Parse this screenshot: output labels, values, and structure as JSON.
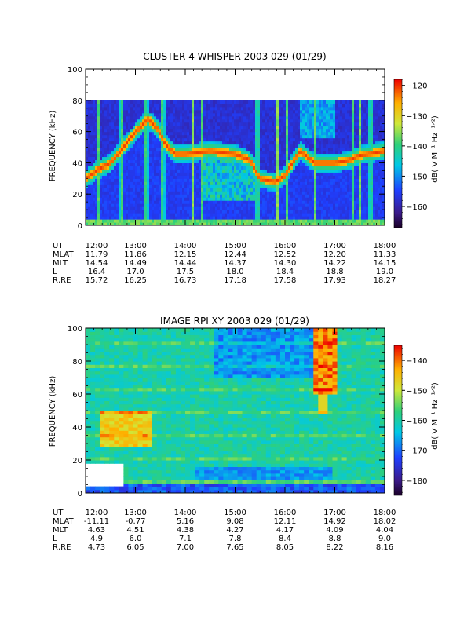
{
  "chart_data": [
    {
      "type": "heatmap",
      "title": "CLUSTER 4 WHISPER 2003 029 (01/29)",
      "xlabel": "",
      "ylabel": "FREQUENCY (kHz)",
      "ylim": [
        0,
        100
      ],
      "y_ticks": [
        "0",
        "20",
        "40",
        "60",
        "80",
        "100"
      ],
      "x_ticks": [
        "12:00",
        "13:00",
        "14:00",
        "15:00",
        "16:00",
        "17:00",
        "18:00"
      ],
      "x_range_hours": [
        12,
        18
      ],
      "data_ceiling_khz": 80,
      "colorbar": {
        "label": "dB( V M⁻¹ Hz⁻¹ᐟ²)",
        "range": [
          -167,
          -118
        ],
        "ticks": [
          "-120",
          "-130",
          "-140",
          "-150",
          "-160"
        ]
      },
      "features": {
        "plasma_line": [
          {
            "t": 12.0,
            "f": 30
          },
          {
            "t": 12.25,
            "f": 36
          },
          {
            "t": 12.5,
            "f": 40
          },
          {
            "t": 12.75,
            "f": 50
          },
          {
            "t": 13.0,
            "f": 60
          },
          {
            "t": 13.25,
            "f": 68
          },
          {
            "t": 13.45,
            "f": 62
          },
          {
            "t": 13.6,
            "f": 52
          },
          {
            "t": 13.8,
            "f": 46
          },
          {
            "t": 14.0,
            "f": 46
          },
          {
            "t": 14.5,
            "f": 48
          },
          {
            "t": 15.0,
            "f": 46
          },
          {
            "t": 15.3,
            "f": 42
          },
          {
            "t": 15.5,
            "f": 30
          },
          {
            "t": 15.8,
            "f": 28
          },
          {
            "t": 16.0,
            "f": 32
          },
          {
            "t": 16.3,
            "f": 48
          },
          {
            "t": 16.6,
            "f": 40
          },
          {
            "t": 17.0,
            "f": 40
          },
          {
            "t": 17.3,
            "f": 42
          },
          {
            "t": 17.5,
            "f": 45
          },
          {
            "t": 18.0,
            "f": 48
          }
        ],
        "broadband_bursts_hours": [
          12.25,
          12.72,
          13.22,
          13.55,
          14.15,
          14.35,
          15.45,
          15.85,
          16.05,
          16.6,
          17.35,
          17.5,
          17.72
        ]
      },
      "ephemeris": {
        "rows": [
          {
            "label": "UT",
            "values": [
              "12:00",
              "13:00",
              "14:00",
              "15:00",
              "16:00",
              "17:00",
              "18:00"
            ]
          },
          {
            "label": "MLAT",
            "values": [
              "11.79",
              "11.86",
              "12.15",
              "12.44",
              "12.52",
              "12.20",
              "11.33"
            ]
          },
          {
            "label": "MLT",
            "values": [
              "14.54",
              "14.49",
              "14.44",
              "14.37",
              "14.30",
              "14.22",
              "14.15"
            ]
          },
          {
            "label": "L",
            "values": [
              "16.4",
              "17.0",
              "17.5",
              "18.0",
              "18.4",
              "18.8",
              "19.0"
            ]
          },
          {
            "label": "R,RE",
            "values": [
              "15.72",
              "16.25",
              "16.73",
              "17.18",
              "17.58",
              "17.93",
              "18.27"
            ]
          }
        ]
      }
    },
    {
      "type": "heatmap",
      "title": "IMAGE RPI XY 2003 029 (01/29)",
      "xlabel": "",
      "ylabel": "FREQUENCY (kHz)",
      "ylim": [
        0,
        100
      ],
      "y_ticks": [
        "0",
        "20",
        "40",
        "60",
        "80",
        "100"
      ],
      "x_ticks": [
        "12:00",
        "13:00",
        "14:00",
        "15:00",
        "16:00",
        "17:00",
        "18:00"
      ],
      "x_range_hours": [
        12,
        18
      ],
      "colorbar": {
        "label": "dB( V M⁻¹ Hz⁻¹ᐟ²)",
        "range": [
          -185,
          -135
        ],
        "ticks": [
          "-140",
          "-150",
          "-160",
          "-170",
          "-180"
        ]
      },
      "features": {
        "no_data_box": {
          "t_start": 12.0,
          "t_end": 12.8,
          "f_low": 4,
          "f_high": 18
        },
        "intense_region": {
          "t_start": 16.55,
          "t_end": 17.0,
          "f_low": 60,
          "f_high": 100
        }
      },
      "ephemeris": {
        "rows": [
          {
            "label": "UT",
            "values": [
              "12:00",
              "13:00",
              "14:00",
              "15:00",
              "16:00",
              "17:00",
              "18:00"
            ]
          },
          {
            "label": "MLAT",
            "values": [
              "-11.11",
              "-0.77",
              "5.16",
              "9.08",
              "12.11",
              "14.92",
              "18.02"
            ]
          },
          {
            "label": "MLT",
            "values": [
              "4.63",
              "4.51",
              "4.38",
              "4.27",
              "4.17",
              "4.09",
              "4.04"
            ]
          },
          {
            "label": "L",
            "values": [
              "4.9",
              "6.0",
              "7.1",
              "7.8",
              "8.4",
              "8.8",
              "9.0"
            ]
          },
          {
            "label": "R,RE",
            "values": [
              "4.73",
              "6.05",
              "7.00",
              "7.65",
              "8.05",
              "8.22",
              "8.16"
            ]
          }
        ]
      }
    }
  ]
}
